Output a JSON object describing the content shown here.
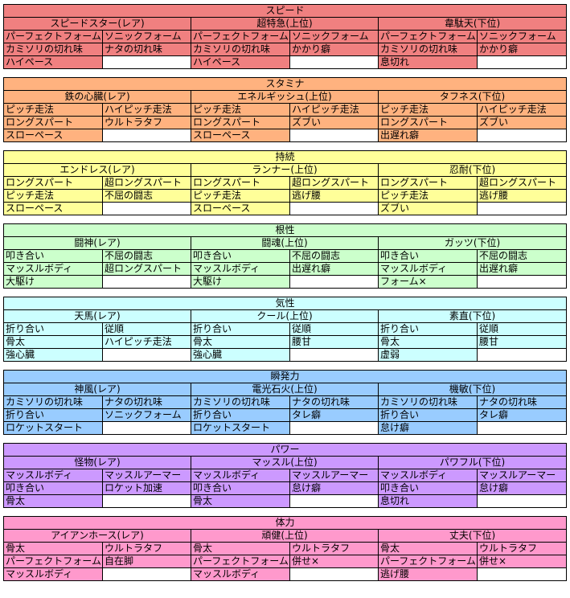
{
  "sections": [
    {
      "title": "スピード",
      "color": "#f08080",
      "groups": [
        {
          "name": "スピードスター(レア)",
          "rows": [
            [
              "パーフェクトフォーム",
              "ソニックフォーム"
            ],
            [
              "カミソリの切れ味",
              "ナタの切れ味"
            ],
            [
              "ハイペース",
              ""
            ]
          ]
        },
        {
          "name": "超特急(上位)",
          "rows": [
            [
              "パーフェクトフォーム",
              "ソニックフォーム"
            ],
            [
              "カミソリの切れ味",
              "かかり癖"
            ],
            [
              "ハイペース",
              ""
            ]
          ]
        },
        {
          "name": "韋駄天(下位)",
          "rows": [
            [
              "パーフェクトフォーム",
              "ソニックフォーム"
            ],
            [
              "カミソリの切れ味",
              "かかり癖"
            ],
            [
              "息切れ",
              ""
            ]
          ]
        }
      ]
    },
    {
      "title": "スタミナ",
      "color": "#ffb27f",
      "groups": [
        {
          "name": "鉄の心臓(レア)",
          "rows": [
            [
              "ピッチ走法",
              "ハイピッチ走法"
            ],
            [
              "ロングスパート",
              "ウルトラタフ"
            ],
            [
              "スローペース",
              ""
            ]
          ]
        },
        {
          "name": "エネルギッシュ(上位)",
          "rows": [
            [
              "ピッチ走法",
              "ハイピッチ走法"
            ],
            [
              "ロングスパート",
              "ズブい"
            ],
            [
              "スローペース",
              ""
            ]
          ]
        },
        {
          "name": "タフネス(下位)",
          "rows": [
            [
              "ピッチ走法",
              "ハイピッチ走法"
            ],
            [
              "ロングスパート",
              "ズブい"
            ],
            [
              "出遅れ癖",
              ""
            ]
          ]
        }
      ]
    },
    {
      "title": "持続",
      "color": "#ffff99",
      "groups": [
        {
          "name": "エンドレス(レア)",
          "rows": [
            [
              "ロングスパート",
              "超ロングスパート"
            ],
            [
              "ピッチ走法",
              "不屈の闘志"
            ],
            [
              "スローペース",
              ""
            ]
          ]
        },
        {
          "name": "ランナー(上位)",
          "rows": [
            [
              "ロングスパート",
              "超ロングスパート"
            ],
            [
              "ピッチ走法",
              "逃げ腰"
            ],
            [
              "スローペース",
              ""
            ]
          ]
        },
        {
          "name": "忍耐(下位)",
          "rows": [
            [
              "ロングスパート",
              "超ロングスパート"
            ],
            [
              "ピッチ走法",
              "逃げ腰"
            ],
            [
              "ズブい",
              ""
            ]
          ]
        }
      ]
    },
    {
      "title": "根性",
      "color": "#ccffcc",
      "groups": [
        {
          "name": "闘神(レア)",
          "rows": [
            [
              "叩き合い",
              "不屈の闘志"
            ],
            [
              "マッスルボディ",
              "超ロングスパート"
            ],
            [
              "大駆け",
              ""
            ]
          ]
        },
        {
          "name": "闘魂(上位)",
          "rows": [
            [
              "叩き合い",
              "不屈の闘志"
            ],
            [
              "マッスルボディ",
              "出遅れ癖"
            ],
            [
              "大駆け",
              ""
            ]
          ]
        },
        {
          "name": "ガッツ(下位)",
          "rows": [
            [
              "叩き合い",
              "不屈の闘志"
            ],
            [
              "マッスルボディ",
              "出遅れ癖"
            ],
            [
              "フォーム×",
              ""
            ]
          ]
        }
      ]
    },
    {
      "title": "気性",
      "color": "#ccffff",
      "groups": [
        {
          "name": "天馬(レア)",
          "rows": [
            [
              "折り合い",
              "従順"
            ],
            [
              "骨太",
              "ハイピッチ走法"
            ],
            [
              "強心臓",
              ""
            ]
          ]
        },
        {
          "name": "クール(上位)",
          "rows": [
            [
              "折り合い",
              "従順"
            ],
            [
              "骨太",
              "腰甘"
            ],
            [
              "強心臓",
              ""
            ]
          ]
        },
        {
          "name": "素直(下位)",
          "rows": [
            [
              "折り合い",
              "従順"
            ],
            [
              "骨太",
              "腰甘"
            ],
            [
              "虚弱",
              ""
            ]
          ]
        }
      ]
    },
    {
      "title": "瞬発力",
      "color": "#99ccff",
      "groups": [
        {
          "name": "神風(レア)",
          "rows": [
            [
              "カミソリの切れ味",
              "ナタの切れ味"
            ],
            [
              "折り合い",
              "ソニックフォーム"
            ],
            [
              "ロケットスタート",
              ""
            ]
          ]
        },
        {
          "name": "電光石火(上位)",
          "rows": [
            [
              "カミソリの切れ味",
              "ナタの切れ味"
            ],
            [
              "折り合い",
              "タレ癖"
            ],
            [
              "ロケットスタート",
              ""
            ]
          ]
        },
        {
          "name": "機敏(下位)",
          "rows": [
            [
              "カミソリの切れ味",
              "ナタの切れ味"
            ],
            [
              "折り合い",
              "タレ癖"
            ],
            [
              "怠け癖",
              ""
            ]
          ]
        }
      ]
    },
    {
      "title": "パワー",
      "color": "#cc99ff",
      "groups": [
        {
          "name": "怪物(レア)",
          "rows": [
            [
              "マッスルボディ",
              "マッスルアーマー"
            ],
            [
              "叩き合い",
              "ロケット加速"
            ],
            [
              "骨太",
              ""
            ]
          ]
        },
        {
          "name": "マッスル(上位)",
          "rows": [
            [
              "マッスルボディ",
              "マッスルアーマー"
            ],
            [
              "叩き合い",
              "怠け癖"
            ],
            [
              "骨太",
              ""
            ]
          ]
        },
        {
          "name": "パワフル(下位)",
          "rows": [
            [
              "マッスルボディ",
              "マッスルアーマー"
            ],
            [
              "叩き合い",
              "怠け癖"
            ],
            [
              "息切れ",
              ""
            ]
          ]
        }
      ]
    },
    {
      "title": "体力",
      "color": "#ff99cc",
      "groups": [
        {
          "name": "アイアンホース(レア)",
          "rows": [
            [
              "骨太",
              "ウルトラタフ"
            ],
            [
              "パーフェクトフォーム",
              "自在脚"
            ],
            [
              "マッスルボディ",
              ""
            ]
          ]
        },
        {
          "name": "頑健(上位)",
          "rows": [
            [
              "骨太",
              "ウルトラタフ"
            ],
            [
              "パーフェクトフォーム",
              "併せ×"
            ],
            [
              "マッスルボディ",
              ""
            ]
          ]
        },
        {
          "name": "丈夫(下位)",
          "rows": [
            [
              "骨太",
              "ウルトラタフ"
            ],
            [
              "パーフェクトフォーム",
              "併せ×"
            ],
            [
              "逃げ腰",
              ""
            ]
          ]
        }
      ]
    }
  ]
}
